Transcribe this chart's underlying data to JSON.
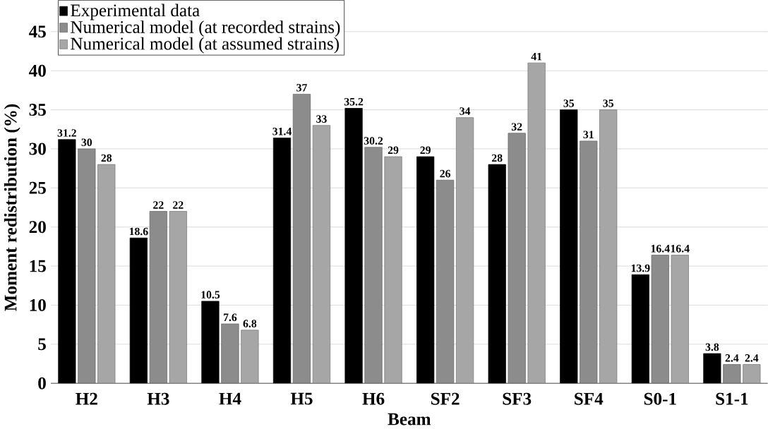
{
  "chart_data": {
    "type": "bar",
    "xlabel": "Beam",
    "ylabel": "Moment redistribution (%)",
    "categories": [
      "H2",
      "H3",
      "H4",
      "H5",
      "H6",
      "SF2",
      "SF3",
      "SF4",
      "S0-1",
      "S1-1"
    ],
    "series": [
      {
        "name": "Experimental data",
        "color": "#000000",
        "values": [
          31.2,
          18.6,
          10.5,
          31.4,
          35.2,
          29,
          28,
          35,
          13.9,
          3.8
        ]
      },
      {
        "name": "Numerical model (at recorded strains)",
        "color": "#8c8c8c",
        "values": [
          30,
          22,
          7.6,
          37,
          30.2,
          26,
          32,
          31,
          16.4,
          2.4
        ]
      },
      {
        "name": "Numerical model (at assumed strains)",
        "color": "#a6a6a6",
        "values": [
          28,
          22,
          6.8,
          33,
          29,
          34,
          41,
          35,
          16.4,
          2.4
        ]
      }
    ],
    "ylim": [
      0,
      45
    ],
    "yticks": [
      0,
      5,
      10,
      15,
      20,
      25,
      30,
      35,
      40,
      45
    ],
    "grid": "y",
    "legend": "top left",
    "data_labels": true
  }
}
